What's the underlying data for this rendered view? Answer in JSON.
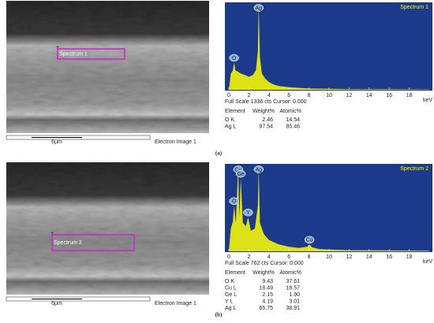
{
  "panels": [
    {
      "label": "(a)",
      "image": {
        "spectrum_label": "Spectrum 1",
        "scale": "6µm",
        "caption": "Electron Image 1"
      },
      "spectrum": {
        "type": "line",
        "title": "Spectrum 1",
        "color": "#ffff00",
        "background": "#1c3a8c",
        "x": [
          0,
          0.2,
          0.4,
          0.52,
          0.65,
          0.9,
          1.2,
          1.6,
          2.0,
          2.4,
          2.7,
          2.9,
          2.98,
          3.1,
          3.3,
          3.6,
          4.0,
          4.5,
          5,
          6,
          7,
          8,
          10,
          12,
          15,
          20
        ],
        "values": [
          0,
          250,
          300,
          420,
          300,
          280,
          250,
          230,
          200,
          230,
          300,
          600,
          1320,
          500,
          250,
          180,
          120,
          80,
          60,
          40,
          30,
          20,
          15,
          10,
          8,
          5
        ],
        "xlim": [
          0,
          20
        ],
        "ylim": [
          0,
          1336
        ],
        "xticks": [
          0,
          2,
          4,
          6,
          8,
          10,
          12,
          14,
          16,
          18
        ],
        "x_unit": "keV",
        "peaks": [
          {
            "label": "O",
            "x": 0.52
          },
          {
            "label": "Ag",
            "x": 2.98
          }
        ],
        "footer": "Full Scale 1336 cts Cursor: 0.000"
      },
      "table": {
        "header": [
          "Element",
          "Weight%",
          "Atomic%"
        ],
        "rows": [
          [
            "O K",
            "2.46",
            "14.54"
          ],
          [
            "Ag L",
            "97.54",
            "85.46"
          ]
        ]
      }
    },
    {
      "label": "(b)",
      "image": {
        "spectrum_label": "Spectrum 2",
        "scale": "6µm",
        "caption": "Electron Image 1"
      },
      "spectrum": {
        "type": "line",
        "title": "Spectrum 2",
        "color": "#ffff00",
        "background": "#1c3a8c",
        "x": [
          0,
          0.2,
          0.4,
          0.52,
          0.7,
          0.93,
          1.05,
          1.19,
          1.4,
          1.7,
          1.92,
          2.2,
          2.6,
          2.9,
          2.98,
          3.1,
          3.5,
          4,
          5,
          6,
          7,
          7.8,
          8.04,
          8.3,
          9,
          10,
          12,
          15,
          20
        ],
        "values": [
          0,
          200,
          260,
          400,
          250,
          740,
          300,
          640,
          250,
          220,
          300,
          180,
          200,
          400,
          740,
          250,
          150,
          100,
          60,
          40,
          30,
          40,
          60,
          35,
          20,
          15,
          10,
          8,
          5
        ],
        "xlim": [
          0,
          20
        ],
        "ylim": [
          0,
          762
        ],
        "xticks": [
          0,
          2,
          4,
          6,
          8,
          10,
          12,
          14,
          16,
          18
        ],
        "x_unit": "keV",
        "peaks": [
          {
            "label": "O",
            "x": 0.52
          },
          {
            "label": "Cu",
            "x": 0.93
          },
          {
            "label": "Ge",
            "x": 1.19
          },
          {
            "label": "Y",
            "x": 1.92
          },
          {
            "label": "Ag",
            "x": 2.98
          },
          {
            "label": "Cu",
            "x": 8.04
          }
        ],
        "footer": "Full Scale 762 cts Cursor: 0.000"
      },
      "table": {
        "header": [
          "Element",
          "Weight%",
          "Atomic%"
        ],
        "rows": [
          [
            "O K",
            "9.43",
            "37.61"
          ],
          [
            "Cu L",
            "18.49",
            "18.57"
          ],
          [
            "Ge L",
            "2.15",
            "1.90"
          ],
          [
            "Y L",
            "4.19",
            "3.01"
          ],
          [
            "Ag L",
            "65.75",
            "38.91"
          ]
        ]
      }
    }
  ]
}
